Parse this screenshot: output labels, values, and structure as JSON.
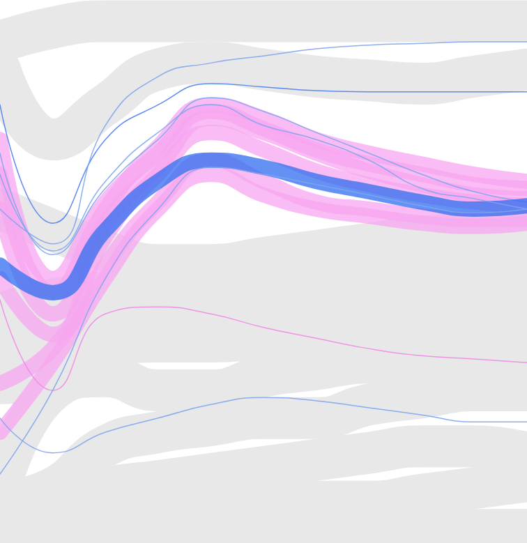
{
  "chart_data": {
    "type": "line",
    "tick_labels": false,
    "grid": false,
    "x": [
      0,
      1,
      2,
      3,
      4,
      5,
      6,
      7,
      8,
      9,
      10
    ],
    "xlim": [
      0,
      10
    ],
    "ylim": [
      0,
      100
    ],
    "series": [
      {
        "color": "#e8e8e8",
        "line_style": "solid",
        "values": [
          92.3,
          94.9,
          96.1,
          96.1,
          96.1,
          96.1,
          96.1,
          96.1,
          96.1,
          96.1,
          96.1
        ]
      },
      {
        "color": "#e8e8e8",
        "line_style": "solid",
        "values": [
          87.2,
          74.3,
          80.7,
          87.2,
          88.4,
          87.2,
          85.9,
          85.2,
          84.6,
          85.9,
          87.2
        ]
      },
      {
        "color": "#e8e8e8",
        "line_style": "solid",
        "values": [
          61.5,
          57.6,
          53.8,
          51.2,
          51.2,
          52.5,
          53.8,
          55.1,
          56.4,
          57.0,
          57.6
        ]
      },
      {
        "color": "#e8e8e8",
        "line_style": "solid",
        "values": [
          42.2,
          44.8,
          46.1,
          46.1,
          47.4,
          48.7,
          49.9,
          51.2,
          51.9,
          51.2,
          51.2
        ]
      },
      {
        "color": "#e8e8e8",
        "line_style": "solid",
        "values": [
          35.8,
          38.4,
          40.9,
          40.9,
          41.6,
          42.2,
          43.5,
          44.8,
          44.8,
          44.8,
          44.8
        ]
      },
      {
        "color": "#e8e8e8",
        "line_style": "solid",
        "values": [
          29.4,
          30.7,
          35.8,
          37.1,
          37.1,
          37.7,
          38.4,
          39.0,
          39.7,
          39.0,
          39.7
        ]
      },
      {
        "color": "#e8e8e8",
        "line_style": "solid",
        "values": [
          10.1,
          28.1,
          30.7,
          28.1,
          28.1,
          30.7,
          32.0,
          33.2,
          33.2,
          34.5,
          34.5
        ]
      },
      {
        "color": "#e8e8e8",
        "line_style": "solid",
        "values": [
          7.6,
          10.1,
          17.8,
          20.4,
          21.7,
          23.0,
          23.0,
          25.5,
          26.8,
          28.1,
          28.1
        ]
      },
      {
        "color": "#e8e8e8",
        "line_style": "solid",
        "values": [
          5.0,
          7.6,
          10.1,
          11.4,
          12.7,
          14.0,
          15.3,
          16.6,
          17.8,
          17.8,
          16.6
        ]
      },
      {
        "color": "#e8e8e8",
        "line_style": "solid",
        "values": [
          2.4,
          2.4,
          5.0,
          6.3,
          7.6,
          7.6,
          7.6,
          7.6,
          8.9,
          10.1,
          11.4
        ]
      },
      {
        "color": "#e8e8e8",
        "line_style": "solid",
        "values": [
          1.2,
          0.5,
          0.5,
          1.2,
          1.2,
          1.8,
          1.8,
          1.8,
          1.8,
          2.4,
          2.4
        ]
      },
      {
        "color": "#f7a6f0",
        "line_style": "solid",
        "values": [
          48.7,
          38.4,
          56.4,
          67.9,
          75.6,
          72.4,
          68.5,
          66.0,
          64.1,
          62.8,
          62.1
        ]
      },
      {
        "color": "#f7a6f0",
        "line_style": "solid",
        "values": [
          67.9,
          46.1,
          61.5,
          73.0,
          80.7,
          78.2,
          74.3,
          71.8,
          69.8,
          67.9,
          66.6
        ]
      },
      {
        "color": "#f7a6f0",
        "line_style": "solid",
        "values": [
          29.4,
          35.8,
          51.2,
          62.8,
          70.5,
          66.6,
          62.8,
          61.5,
          60.2,
          59.6,
          59.6
        ]
      },
      {
        "color": "#f7a6f0",
        "line_style": "solid",
        "values": [
          20.4,
          33.2,
          48.7,
          61.5,
          67.9,
          64.1,
          61.5,
          60.2,
          58.9,
          58.3,
          58.9
        ]
      },
      {
        "color": "#f7a6f0",
        "line_style": "solid",
        "values": [
          61.5,
          42.2,
          58.9,
          69.2,
          78.2,
          75.6,
          71.8,
          68.5,
          66.0,
          64.1,
          63.4
        ]
      },
      {
        "color": "#f7a6f0",
        "line_style": "solid",
        "values": [
          74.3,
          48.7,
          62.8,
          71.8,
          79.5,
          76.3,
          72.4,
          69.8,
          67.9,
          66.0,
          65.3
        ]
      },
      {
        "color": "#f08ae6",
        "line_style": "thin",
        "values": [
          44.8,
          28.1,
          42.2,
          43.5,
          42.2,
          39.7,
          37.7,
          35.8,
          34.5,
          33.9,
          33.2
        ]
      },
      {
        "color": "#7fa4ee",
        "line_style": "thin",
        "values": [
          71.8,
          53.1,
          65.3,
          74.3,
          82.0,
          79.5,
          75.6,
          71.8,
          67.9,
          64.7,
          62.8
        ]
      },
      {
        "color": "#2f6ef0",
        "line_style": "solid",
        "values": [
          51.2,
          46.1,
          57.6,
          66.6,
          70.5,
          69.2,
          66.6,
          64.7,
          62.8,
          61.5,
          62.1
        ]
      },
      {
        "color": "#7fa4ee",
        "line_style": "thin",
        "values": [
          12.7,
          28.1,
          48.7,
          61.5,
          69.2,
          67.9,
          66.0,
          64.1,
          62.1,
          60.8,
          61.5
        ]
      },
      {
        "color": "#4a80ee",
        "line_style": "thin",
        "values": [
          80.7,
          58.9,
          74.3,
          80.7,
          84.6,
          84.0,
          83.3,
          83.1,
          83.1,
          83.1,
          83.1
        ]
      },
      {
        "color": "#7fa4ee",
        "line_style": "thin",
        "values": [
          67.9,
          53.8,
          66.6,
          75.6,
          80.7,
          76.9,
          74.3,
          70.5,
          65.3,
          63.4,
          61.5
        ]
      },
      {
        "color": "#7fa4ee",
        "line_style": "thin",
        "values": [
          61.5,
          55.1,
          76.9,
          85.9,
          88.4,
          89.7,
          91.0,
          91.7,
          92.0,
          92.3,
          92.3
        ]
      },
      {
        "color": "#7fa4ee",
        "line_style": "thin",
        "values": [
          23.0,
          16.6,
          20.4,
          23.0,
          25.5,
          26.8,
          26.2,
          24.9,
          23.6,
          22.3,
          22.3
        ]
      }
    ]
  }
}
